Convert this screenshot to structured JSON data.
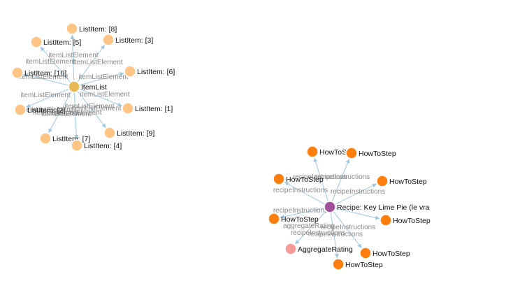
{
  "colors": {
    "itemlist": "#e8b955",
    "listitem": "#ffc586",
    "recipe": "#a2509c",
    "howtostep": "#ff7f0e",
    "aggregaterating": "#f69a9a",
    "edge": "#9ec8e0",
    "edge_label": "#8a8a8a"
  },
  "graph1": {
    "center": "ItemList",
    "edge_label": "itemListElement",
    "items": [
      "ListItem: [8]",
      "ListItem: [5]",
      "ListItem: [3]",
      "ListItem: [10]",
      "ListItem: [6]",
      "ListItem: [2]",
      "ListItem: [1]",
      "ListItem: [9]",
      "ListItem: [7]",
      "ListItem: [4]"
    ]
  },
  "graph2": {
    "center": "Recipe: Key Lime Pie (le vra",
    "edge_label_steps": "recipeInstructions",
    "edge_label_rating": "aggregateRating",
    "steps": [
      "HowToS",
      "HowToStep",
      "HowToStep",
      "HowToStep",
      "HowToStep",
      "HowToStep",
      "HowToStep",
      "HowToStep"
    ],
    "rating": "AggregateRating"
  }
}
